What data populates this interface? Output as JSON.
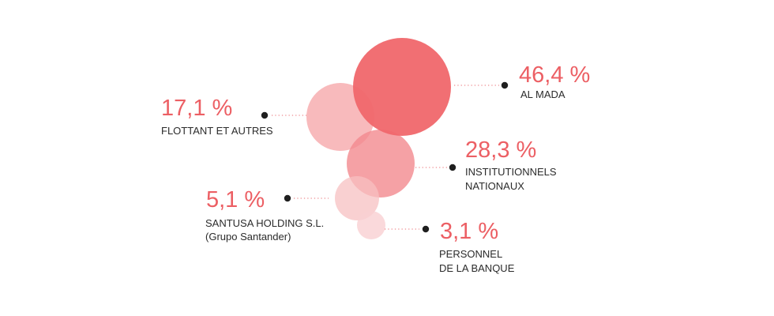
{
  "chart_data": {
    "type": "bubble",
    "unit": "%",
    "series": [
      {
        "value_label": "46,4 %",
        "value": 46.4,
        "label_lines": [
          "AL MADA"
        ],
        "color": "#f0676c",
        "opacity": 0.95
      },
      {
        "value_label": "17,1 %",
        "value": 17.1,
        "label_lines": [
          "FLOTTANT ET AUTRES"
        ],
        "color": "#f5a3a6",
        "opacity": 0.75
      },
      {
        "value_label": "28,3 %",
        "value": 28.3,
        "label_lines": [
          "INSTITUTIONNELS",
          "NATIONAUX"
        ],
        "color": "#f28a8e",
        "opacity": 0.8
      },
      {
        "value_label": "5,1 %",
        "value": 5.1,
        "label_lines": [
          "SANTUSA HOLDING S.L.",
          "(Grupo Santander)"
        ],
        "color": "#f7c0c2",
        "opacity": 0.75
      },
      {
        "value_label": "3,1 %",
        "value": 3.1,
        "label_lines": [
          "PERSONNEL",
          "DE LA BANQUE"
        ],
        "color": "#f9d0d2",
        "opacity": 0.8
      }
    ]
  }
}
